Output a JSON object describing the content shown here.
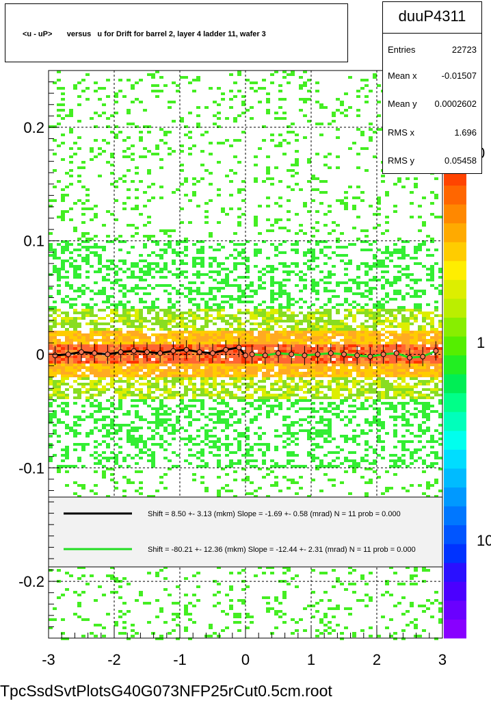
{
  "title": "<u - uP>       versus   u for Drift for barrel 2, layer 4 ladder 11, wafer 3",
  "stats": {
    "name": "duuP4311",
    "rows": [
      {
        "key": "Entries",
        "value": "22723"
      },
      {
        "key": "Mean x",
        "value": "-0.01507"
      },
      {
        "key": "Mean y",
        "value": "0.0002602"
      },
      {
        "key": "RMS x",
        "value": "1.696"
      },
      {
        "key": "RMS y",
        "value": "0.05458"
      }
    ]
  },
  "footer": "TpcSsdSvtPlotsG40G073NFP25rCut0.5cm.root",
  "legend": {
    "entries": [
      {
        "color": "#000000",
        "text": "Shift =     8.50 +- 3.13 (mkm) Slope =    -1.69 +- 0.58 (mrad)  N = 11 prob = 0.000"
      },
      {
        "color": "#22dd22",
        "text": "Shift =   -80.21 +- 12.36 (mkm) Slope =   -12.44 +- 2.31 (mrad)  N = 11 prob = 0.000"
      }
    ]
  },
  "chart_data": {
    "type": "heatmap",
    "title": "<u - uP>       versus   u for Drift for barrel 2, layer 4 ladder 11, wafer 3",
    "xlim": [
      -3,
      3
    ],
    "ylim": [
      -0.25,
      0.25
    ],
    "x_ticks": [
      "-3",
      "-2",
      "-1",
      "0",
      "1",
      "2",
      "3"
    ],
    "y_ticks": [
      "-0.2",
      "-0.1",
      "0",
      "0.1",
      "0.2"
    ],
    "z_scale": "log",
    "z_tick_labels": [
      "10",
      "1",
      "0"
    ],
    "grid": true,
    "series": [
      {
        "name": "black profile",
        "color": "#000000",
        "x": [
          -2.9,
          -2.7,
          -2.5,
          -2.3,
          -2.1,
          -1.9,
          -1.7,
          -1.5,
          -1.3,
          -1.1,
          -0.9,
          -0.7,
          -0.5,
          -0.3,
          -0.1,
          0.0
        ],
        "y": [
          -0.001,
          0.0,
          0.002,
          0.001,
          0.0,
          0.002,
          0.003,
          0.002,
          0.001,
          0.003,
          0.004,
          0.002,
          0.001,
          0.004,
          0.006,
          -0.001
        ]
      },
      {
        "name": "green profile",
        "color": "#22dd22",
        "x": [
          0.1,
          0.3,
          0.5,
          0.7,
          0.9,
          1.1,
          1.3,
          1.5,
          1.7,
          1.9,
          2.1,
          2.3,
          2.5,
          2.7,
          2.9
        ],
        "y": [
          0.0,
          -0.001,
          0.001,
          0.0,
          -0.001,
          0.0,
          0.001,
          0.0,
          -0.001,
          -0.002,
          0.0,
          0.001,
          -0.003,
          -0.002,
          0.003
        ]
      }
    ]
  }
}
